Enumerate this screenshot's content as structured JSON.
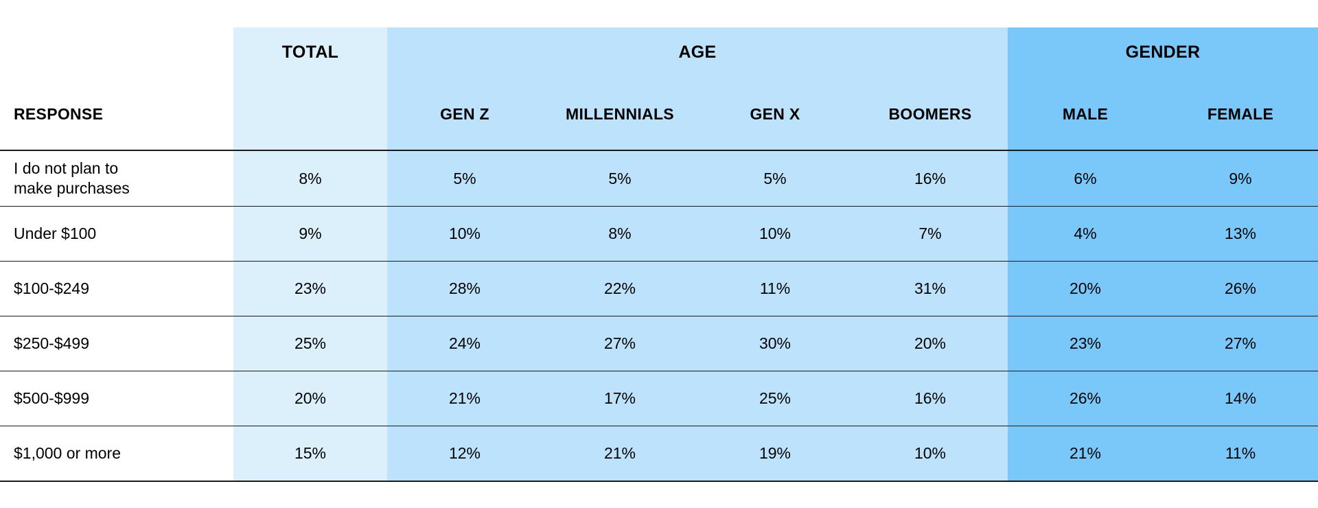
{
  "colors": {
    "total_band": "#dcf0fc",
    "age_band": "#bce3fb",
    "gender_band": "#7ac8fa",
    "rule": "#1a1a1a"
  },
  "chart_data": {
    "type": "table",
    "group_headers": [
      {
        "key": "total",
        "label": "TOTAL"
      },
      {
        "key": "age",
        "label": "AGE"
      },
      {
        "key": "gender",
        "label": "GENDER"
      }
    ],
    "row_header_label": "RESPONSE",
    "columns": [
      {
        "key": "total",
        "label": "",
        "group": "total"
      },
      {
        "key": "gen_z",
        "label": "GEN Z",
        "group": "age"
      },
      {
        "key": "millennials",
        "label": "MILLENNIALS",
        "group": "age"
      },
      {
        "key": "gen_x",
        "label": "GEN X",
        "group": "age"
      },
      {
        "key": "boomers",
        "label": "BOOMERS",
        "group": "age"
      },
      {
        "key": "male",
        "label": "MALE",
        "group": "gender"
      },
      {
        "key": "female",
        "label": "FEMALE",
        "group": "gender"
      }
    ],
    "rows": [
      {
        "response": "I do not plan to make purchases",
        "values": [
          "8%",
          "5%",
          "5%",
          "5%",
          "16%",
          "6%",
          "9%"
        ]
      },
      {
        "response": "Under $100",
        "values": [
          "9%",
          "10%",
          "8%",
          "10%",
          "7%",
          "4%",
          "13%"
        ]
      },
      {
        "response": "$100-$249",
        "values": [
          "23%",
          "28%",
          "22%",
          "11%",
          "31%",
          "20%",
          "26%"
        ]
      },
      {
        "response": "$250-$499",
        "values": [
          "25%",
          "24%",
          "27%",
          "30%",
          "20%",
          "23%",
          "27%"
        ]
      },
      {
        "response": "$500-$999",
        "values": [
          "20%",
          "21%",
          "17%",
          "25%",
          "16%",
          "26%",
          "14%"
        ]
      },
      {
        "response": "$1,000 or more",
        "values": [
          "15%",
          "12%",
          "21%",
          "19%",
          "10%",
          "21%",
          "11%"
        ]
      }
    ]
  }
}
